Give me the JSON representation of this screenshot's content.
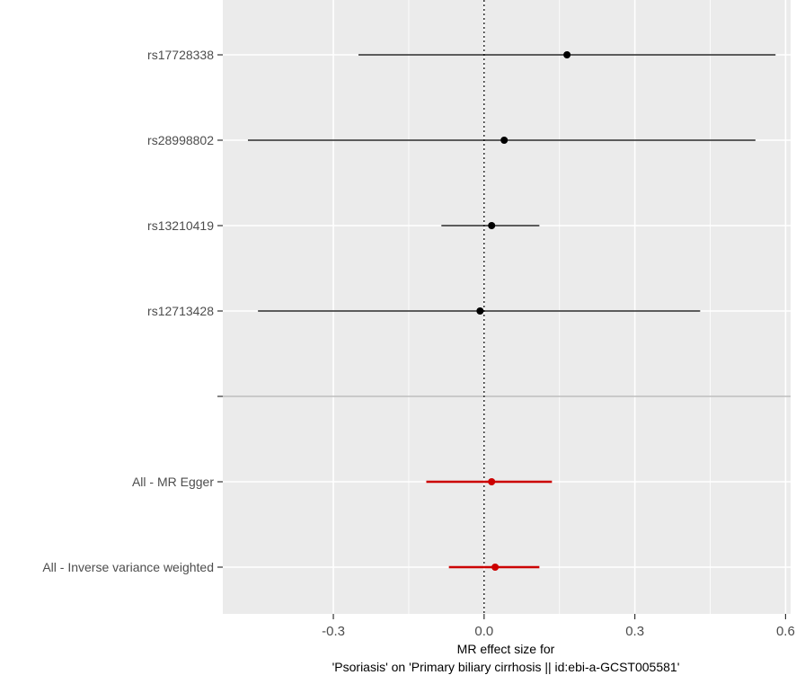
{
  "chart_data": {
    "type": "forest",
    "xlabel_line1": "MR effect size for",
    "xlabel_line2": "'Psoriasis' on 'Primary biliary cirrhosis || id:ebi-a-GCST005581'",
    "xlim": [
      -0.52,
      0.61
    ],
    "xticks": [
      -0.3,
      0.0,
      0.3,
      0.6
    ],
    "xtick_labels": [
      "-0.3",
      "0.0",
      "0.3",
      "0.6"
    ],
    "reference_line": 0,
    "grid": true,
    "rows": [
      {
        "label": "rs17728338",
        "estimate": 0.165,
        "lower": -0.25,
        "upper": 0.58,
        "type": "snp"
      },
      {
        "label": "rs28998802",
        "estimate": 0.04,
        "lower": -0.47,
        "upper": 0.54,
        "type": "snp"
      },
      {
        "label": "rs13210419",
        "estimate": 0.015,
        "lower": -0.085,
        "upper": 0.11,
        "type": "snp"
      },
      {
        "label": "rs12713428",
        "estimate": -0.008,
        "lower": -0.45,
        "upper": 0.43,
        "type": "snp"
      },
      {
        "label": "",
        "estimate": null,
        "lower": null,
        "upper": null,
        "type": "separator"
      },
      {
        "label": "All - MR Egger",
        "estimate": 0.015,
        "lower": -0.115,
        "upper": 0.135,
        "type": "summary"
      },
      {
        "label": "All - Inverse variance weighted",
        "estimate": 0.022,
        "lower": -0.07,
        "upper": 0.11,
        "type": "summary"
      }
    ],
    "colors": {
      "panel": "#ebebeb",
      "grid": "#ffffff",
      "snp": "#000000",
      "summary": "#cc0000",
      "separator": "#bebebe",
      "axis_text": "#4d4d4d"
    }
  }
}
